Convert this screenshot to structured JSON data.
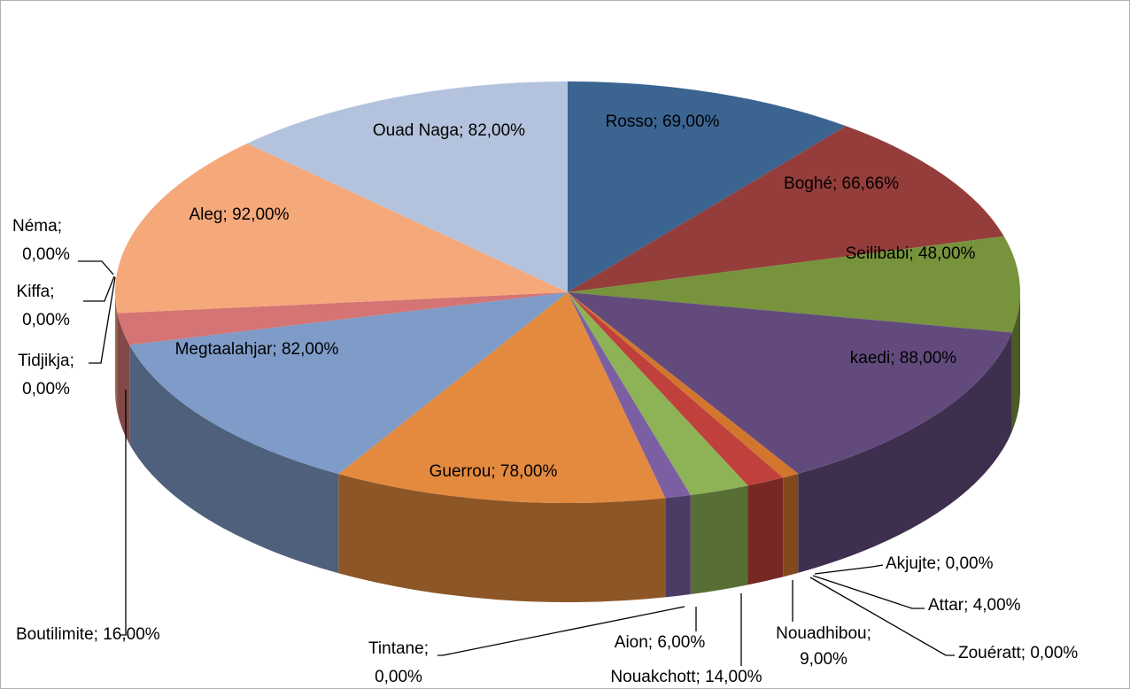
{
  "chart_data": {
    "type": "pie3d",
    "separator": "; ",
    "categories": [
      "Rosso",
      "Boghé",
      "Seilibabi",
      "kaedi",
      "Akjujte",
      "Attar",
      "Zouératt",
      "Nouadhibou",
      "Nouakchott",
      "Aion",
      "Tintane",
      "Guerrou",
      "Megtaalahjar",
      "Boutilimite",
      "Tidjikja",
      "Kiffa",
      "Néma",
      "Aleg",
      "Ouad Naga"
    ],
    "values": [
      69,
      66.66,
      48,
      88,
      0,
      4,
      0,
      9,
      14,
      6,
      0,
      78,
      82,
      16,
      0,
      0,
      0,
      92,
      82
    ],
    "value_labels": [
      "69,00%",
      "66,66%",
      "48,00%",
      "88,00%",
      "0,00%",
      "4,00%",
      "0,00%",
      "9,00%",
      "14,00%",
      "6,00%",
      "0,00%",
      "78,00%",
      "82,00%",
      "16,00%",
      "0,00%",
      "0,00%",
      "0,00%",
      "92,00%",
      "82,00%"
    ],
    "colors": [
      "#3b6491",
      "#953d3a",
      "#77933c",
      "#624b7c",
      "#2f8fab",
      "#d2762e",
      "#888888",
      "#c0403c",
      "#8db356",
      "#7b5fa3",
      "#5a7db0",
      "#e38a3f",
      "#7f9bc8",
      "#d47474",
      "#a0a0a0",
      "#b0b0b0",
      "#c0c0c0",
      "#f5a87a",
      "#b4c3dd"
    ]
  }
}
